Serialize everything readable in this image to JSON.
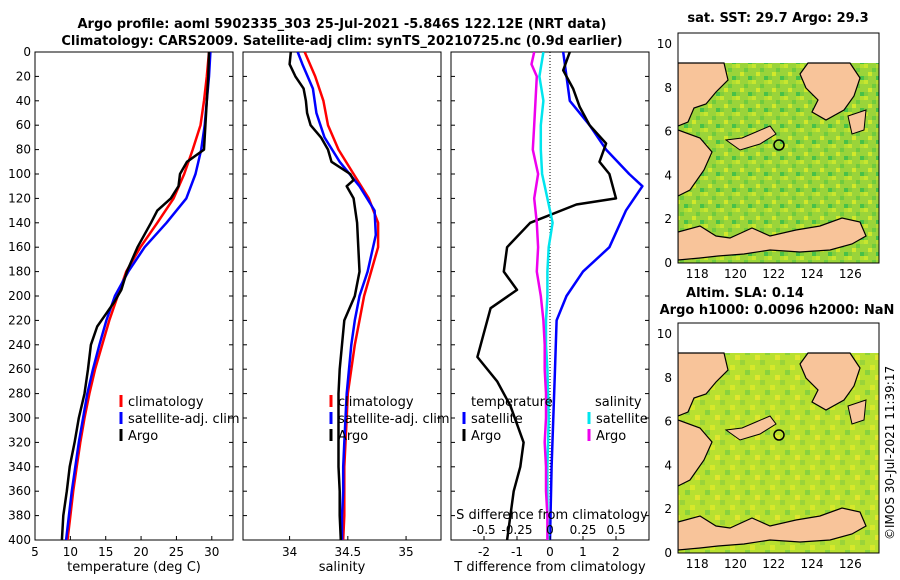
{
  "header": {
    "title_line1": "Argo profile: aoml 5902335_303 25-Jul-2021 -5.846S 122.12E (NRT data)",
    "title_line2": "Climatology: CARS2009. Satellite-adj clim: synTS_20210725.nc (0.9d earlier)"
  },
  "colors": {
    "climatology": "#ff0000",
    "satellite": "#0000ff",
    "argo": "#000000",
    "sal_satellite": "#00e5ee",
    "sal_argo": "#ee00ee",
    "land": "#f8c49a"
  },
  "chart_data": [
    {
      "id": "temperature",
      "type": "line",
      "xlabel": "temperature (deg C)",
      "ylabel": "",
      "xlim": [
        5,
        33
      ],
      "ylim": [
        400,
        0
      ],
      "xticks": [
        "5",
        "10",
        "15",
        "20",
        "25",
        "30"
      ],
      "yticks": [
        "0",
        "20",
        "40",
        "60",
        "80",
        "100",
        "120",
        "140",
        "160",
        "180",
        "200",
        "220",
        "240",
        "260",
        "280",
        "300",
        "320",
        "340",
        "360",
        "380",
        "400"
      ],
      "legend": [
        "climatology",
        "satellite-adj. clim",
        "Argo"
      ],
      "series": [
        {
          "name": "climatology",
          "color": "#ff0000",
          "points": [
            [
              29.6,
              0
            ],
            [
              29.3,
              20
            ],
            [
              28.9,
              40
            ],
            [
              28.4,
              60
            ],
            [
              27.3,
              80
            ],
            [
              26.1,
              100
            ],
            [
              24.6,
              120
            ],
            [
              22.3,
              140
            ],
            [
              19.9,
              160
            ],
            [
              17.9,
              180
            ],
            [
              16.7,
              200
            ],
            [
              15.5,
              220
            ],
            [
              14.5,
              240
            ],
            [
              13.5,
              260
            ],
            [
              12.7,
              280
            ],
            [
              12.0,
              300
            ],
            [
              11.4,
              320
            ],
            [
              10.9,
              340
            ],
            [
              10.4,
              360
            ],
            [
              10.0,
              380
            ],
            [
              9.6,
              400
            ]
          ]
        },
        {
          "name": "satellite-adj. clim",
          "color": "#0000ff",
          "points": [
            [
              29.8,
              0
            ],
            [
              29.6,
              20
            ],
            [
              29.3,
              40
            ],
            [
              29.0,
              60
            ],
            [
              28.5,
              80
            ],
            [
              27.7,
              100
            ],
            [
              26.4,
              120
            ],
            [
              23.6,
              140
            ],
            [
              20.5,
              160
            ],
            [
              18.2,
              180
            ],
            [
              16.3,
              200
            ],
            [
              15.1,
              220
            ],
            [
              14.1,
              240
            ],
            [
              13.2,
              260
            ],
            [
              12.4,
              280
            ],
            [
              11.8,
              300
            ],
            [
              11.2,
              320
            ],
            [
              10.7,
              340
            ],
            [
              10.2,
              360
            ],
            [
              9.8,
              380
            ],
            [
              9.4,
              400
            ]
          ]
        },
        {
          "name": "Argo",
          "color": "#000000",
          "points": [
            [
              29.6,
              0
            ],
            [
              29.5,
              20
            ],
            [
              29.3,
              40
            ],
            [
              29.1,
              60
            ],
            [
              28.9,
              80
            ],
            [
              26.5,
              90
            ],
            [
              25.5,
              100
            ],
            [
              25.3,
              110
            ],
            [
              24.2,
              120
            ],
            [
              22.3,
              130
            ],
            [
              21.4,
              140
            ],
            [
              19.5,
              160
            ],
            [
              18.0,
              180
            ],
            [
              17.2,
              195
            ],
            [
              16.2,
              205
            ],
            [
              15.0,
              215
            ],
            [
              13.8,
              225
            ],
            [
              12.9,
              240
            ],
            [
              12.5,
              260
            ],
            [
              12.0,
              280
            ],
            [
              11.2,
              300
            ],
            [
              10.6,
              320
            ],
            [
              9.9,
              340
            ],
            [
              9.5,
              360
            ],
            [
              9.0,
              380
            ],
            [
              8.8,
              400
            ]
          ]
        }
      ]
    },
    {
      "id": "salinity",
      "type": "line",
      "xlabel": "salinity",
      "xlim": [
        33.6,
        35.3
      ],
      "ylim": [
        400,
        0
      ],
      "xticks": [
        "34",
        "34.5",
        "35"
      ],
      "legend": [
        "climatology",
        "satellite-adj. clim",
        "Argo"
      ],
      "series": [
        {
          "name": "climatology",
          "color": "#ff0000",
          "points": [
            [
              34.13,
              0
            ],
            [
              34.22,
              20
            ],
            [
              34.29,
              40
            ],
            [
              34.33,
              60
            ],
            [
              34.42,
              80
            ],
            [
              34.55,
              100
            ],
            [
              34.68,
              120
            ],
            [
              34.76,
              140
            ],
            [
              34.76,
              160
            ],
            [
              34.7,
              180
            ],
            [
              34.64,
              200
            ],
            [
              34.6,
              220
            ],
            [
              34.56,
              240
            ],
            [
              34.53,
              260
            ],
            [
              34.5,
              280
            ],
            [
              34.49,
              300
            ],
            [
              34.48,
              320
            ],
            [
              34.47,
              340
            ],
            [
              34.47,
              360
            ],
            [
              34.47,
              380
            ],
            [
              34.46,
              400
            ]
          ]
        },
        {
          "name": "satellite-adj. clim",
          "color": "#0000ff",
          "points": [
            [
              34.07,
              0
            ],
            [
              34.11,
              10
            ],
            [
              34.2,
              30
            ],
            [
              34.23,
              50
            ],
            [
              34.3,
              70
            ],
            [
              34.43,
              90
            ],
            [
              34.6,
              110
            ],
            [
              34.73,
              130
            ],
            [
              34.74,
              150
            ],
            [
              34.67,
              180
            ],
            [
              34.6,
              200
            ],
            [
              34.56,
              220
            ],
            [
              34.53,
              240
            ],
            [
              34.51,
              260
            ],
            [
              34.49,
              280
            ],
            [
              34.48,
              300
            ],
            [
              34.47,
              320
            ],
            [
              34.46,
              340
            ],
            [
              34.46,
              360
            ],
            [
              34.45,
              380
            ],
            [
              34.45,
              400
            ]
          ]
        },
        {
          "name": "Argo",
          "color": "#000000",
          "points": [
            [
              34.01,
              0
            ],
            [
              34.0,
              10
            ],
            [
              34.05,
              20
            ],
            [
              34.12,
              30
            ],
            [
              34.14,
              40
            ],
            [
              34.15,
              50
            ],
            [
              34.18,
              60
            ],
            [
              34.27,
              70
            ],
            [
              34.33,
              80
            ],
            [
              34.36,
              90
            ],
            [
              34.52,
              100
            ],
            [
              34.55,
              105
            ],
            [
              34.49,
              110
            ],
            [
              34.55,
              120
            ],
            [
              34.58,
              140
            ],
            [
              34.59,
              160
            ],
            [
              34.6,
              180
            ],
            [
              34.56,
              200
            ],
            [
              34.47,
              220
            ],
            [
              34.45,
              240
            ],
            [
              34.43,
              260
            ],
            [
              34.42,
              280
            ],
            [
              34.42,
              300
            ],
            [
              34.42,
              320
            ],
            [
              34.42,
              340
            ],
            [
              34.43,
              360
            ],
            [
              34.43,
              380
            ],
            [
              34.44,
              400
            ]
          ]
        }
      ]
    },
    {
      "id": "differences",
      "type": "line",
      "xlabel": "T difference from climatology",
      "top_label": "S difference from climatology",
      "xlim": [
        -3,
        3
      ],
      "ylim": [
        400,
        0
      ],
      "xticks": [
        "-2",
        "-1",
        "0",
        "1",
        "2"
      ],
      "top_ticks": [
        "-0.5",
        "-0.25",
        "0",
        "0.25",
        "0.5"
      ],
      "legend_temperature": [
        "temperature",
        "satellite",
        "Argo"
      ],
      "legend_salinity": [
        "salinity",
        "satellite",
        "Argo"
      ],
      "series": [
        {
          "name": "temperature satellite",
          "color": "#0000ff",
          "points": [
            [
              0.4,
              0
            ],
            [
              0.5,
              20
            ],
            [
              0.6,
              40
            ],
            [
              1.2,
              60
            ],
            [
              1.7,
              80
            ],
            [
              2.4,
              100
            ],
            [
              2.8,
              110
            ],
            [
              2.3,
              130
            ],
            [
              1.8,
              160
            ],
            [
              1.0,
              180
            ],
            [
              0.5,
              200
            ],
            [
              0.2,
              220
            ],
            [
              0.15,
              260
            ],
            [
              0.1,
              300
            ],
            [
              0.05,
              340
            ],
            [
              0.0,
              400
            ]
          ]
        },
        {
          "name": "temperature Argo",
          "color": "#000000",
          "points": [
            [
              0.6,
              0
            ],
            [
              0.4,
              15
            ],
            [
              0.7,
              30
            ],
            [
              0.9,
              45
            ],
            [
              1.2,
              60
            ],
            [
              1.7,
              75
            ],
            [
              1.5,
              90
            ],
            [
              1.8,
              100
            ],
            [
              2.0,
              120
            ],
            [
              0.8,
              125
            ],
            [
              -0.6,
              140
            ],
            [
              -1.3,
              160
            ],
            [
              -1.4,
              180
            ],
            [
              -1.0,
              195
            ],
            [
              -1.8,
              210
            ],
            [
              -2.0,
              230
            ],
            [
              -2.2,
              250
            ],
            [
              -1.6,
              270
            ],
            [
              -1.2,
              290
            ],
            [
              -0.8,
              320
            ],
            [
              -0.9,
              340
            ],
            [
              -1.1,
              360
            ],
            [
              -1.2,
              380
            ],
            [
              -1.3,
              400
            ]
          ]
        },
        {
          "name": "salinity satellite",
          "color": "#00e5ee",
          "points": [
            [
              -0.05,
              0
            ],
            [
              -0.08,
              20
            ],
            [
              -0.05,
              40
            ],
            [
              -0.07,
              60
            ],
            [
              -0.07,
              80
            ],
            [
              -0.06,
              100
            ],
            [
              -0.02,
              120
            ],
            [
              0.02,
              140
            ],
            [
              -0.01,
              160
            ],
            [
              -0.02,
              180
            ],
            [
              -0.02,
              200
            ],
            [
              -0.03,
              220
            ],
            [
              -0.03,
              240
            ],
            [
              -0.02,
              260
            ],
            [
              -0.01,
              300
            ],
            [
              -0.02,
              340
            ],
            [
              -0.02,
              380
            ],
            [
              -0.01,
              400
            ]
          ]
        },
        {
          "name": "salinity Argo",
          "color": "#ee00ee",
          "points": [
            [
              -0.12,
              0
            ],
            [
              -0.14,
              10
            ],
            [
              -0.1,
              20
            ],
            [
              -0.11,
              40
            ],
            [
              -0.12,
              60
            ],
            [
              -0.13,
              80
            ],
            [
              -0.09,
              100
            ],
            [
              -0.12,
              120
            ],
            [
              -0.1,
              140
            ],
            [
              -0.09,
              160
            ],
            [
              -0.1,
              180
            ],
            [
              -0.07,
              200
            ],
            [
              -0.05,
              220
            ],
            [
              -0.04,
              240
            ],
            [
              -0.04,
              260
            ],
            [
              -0.03,
              280
            ],
            [
              -0.03,
              300
            ],
            [
              -0.04,
              320
            ],
            [
              -0.03,
              340
            ],
            [
              -0.03,
              360
            ],
            [
              -0.02,
              380
            ],
            [
              -0.02,
              400
            ]
          ]
        }
      ]
    },
    {
      "id": "sst_map",
      "type": "heatmap",
      "title": "sat. SST: 29.7 Argo: 29.3",
      "xlim": [
        117,
        127.5
      ],
      "ylim": [
        0,
        10.5
      ],
      "xticks": [
        "118",
        "120",
        "122",
        "124",
        "126"
      ],
      "yticks": [
        "0",
        "2",
        "4",
        "6",
        "8",
        "10"
      ],
      "argo_position": [
        122.12,
        5.846
      ]
    },
    {
      "id": "sla_map",
      "type": "heatmap",
      "title": "Altim. SLA: 0.14",
      "subtitle": "Argo h1000: 0.0096 h2000: NaN",
      "xlim": [
        117,
        127.5
      ],
      "ylim": [
        0,
        10.5
      ],
      "xticks": [
        "118",
        "120",
        "122",
        "124",
        "126"
      ],
      "yticks": [
        "0",
        "2",
        "4",
        "6",
        "8",
        "10"
      ],
      "argo_position": [
        122.12,
        5.846
      ]
    }
  ],
  "credit": "©IMOS 30-Jul-2021 11:39:17"
}
